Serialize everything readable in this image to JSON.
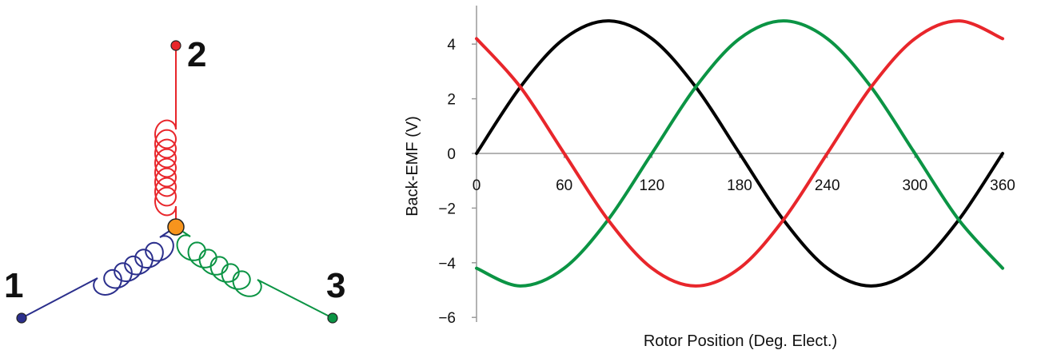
{
  "diagram": {
    "terminals": [
      {
        "label": "1",
        "color": "#2b2f8c"
      },
      {
        "label": "2",
        "color": "#e8262b"
      },
      {
        "label": "3",
        "color": "#0b9444"
      }
    ],
    "neutral_color": "#f7941d"
  },
  "chart_data": {
    "type": "line",
    "title": "",
    "xlabel": "Rotor Position (Deg. Elect.)",
    "ylabel": "Back-EMF (V)",
    "xlim": [
      0,
      360
    ],
    "ylim": [
      -6,
      5
    ],
    "x_ticks": [
      "0",
      "60",
      "120",
      "180",
      "240",
      "300",
      "360"
    ],
    "x_tick_values": [
      0,
      60,
      120,
      180,
      240,
      300,
      360
    ],
    "y_ticks": [
      "4",
      "2",
      "0",
      "−2",
      "−4",
      "−6"
    ],
    "y_tick_values": [
      4,
      2,
      0,
      -2,
      -4,
      -6
    ],
    "grid": false,
    "x": [
      0,
      30,
      60,
      90,
      120,
      150,
      180,
      210,
      240,
      270,
      300,
      330,
      360
    ],
    "series": [
      {
        "color": "#000000",
        "values": [
          0,
          2.43,
          4.2,
          4.85,
          4.2,
          2.43,
          0,
          -2.43,
          -4.2,
          -4.85,
          -4.2,
          -2.43,
          0
        ]
      },
      {
        "color": "#0b9444",
        "values": [
          -4.2,
          -4.85,
          -4.2,
          -2.43,
          0,
          2.43,
          4.2,
          4.85,
          4.2,
          2.43,
          0,
          -2.43,
          -4.2
        ]
      },
      {
        "color": "#e8262b",
        "values": [
          4.2,
          2.43,
          0,
          -2.43,
          -4.2,
          -4.85,
          -4.2,
          -2.43,
          0,
          2.43,
          4.2,
          4.85,
          4.2
        ]
      }
    ]
  }
}
